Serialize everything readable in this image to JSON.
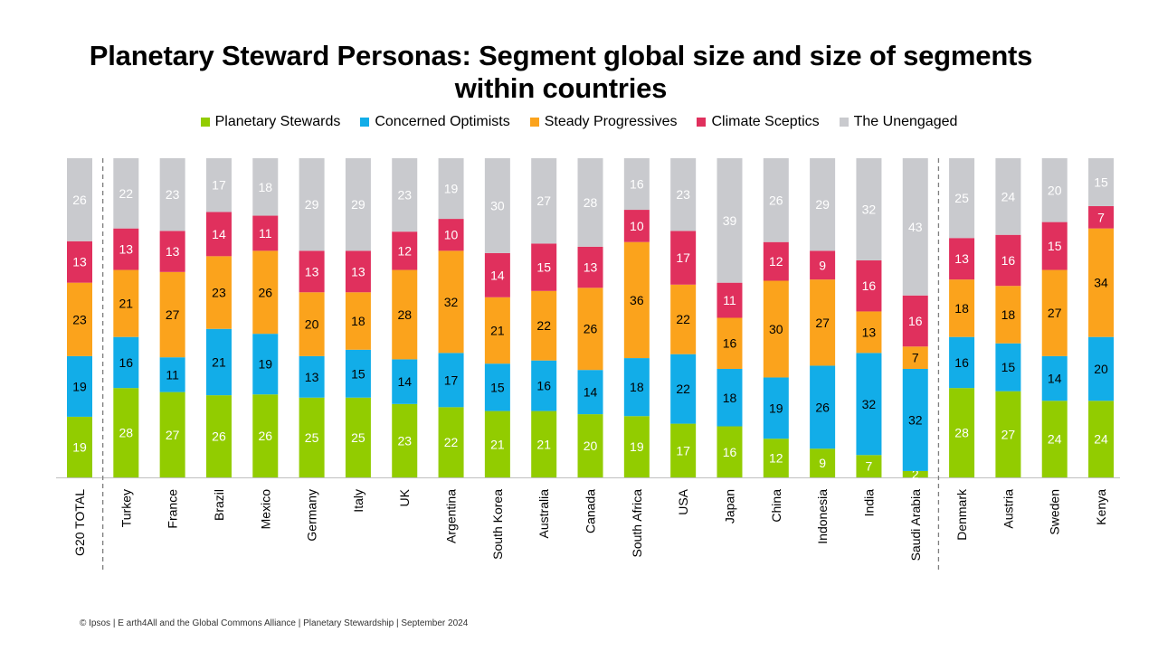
{
  "title_line1": "Planetary Steward Personas: Segment global size and size of segments",
  "title_line2": "within countries",
  "footer": "© Ipsos | E arth4All and the Global Commons Alliance | Planetary Stewardship | September 2024",
  "legend": [
    {
      "label": "Planetary Stewards",
      "color": "#92cc00"
    },
    {
      "label": "Concerned Optimists",
      "color": "#12ade8"
    },
    {
      "label": "Steady Progressives",
      "color": "#fba31c"
    },
    {
      "label": "Climate Sceptics",
      "color": "#e0305d"
    },
    {
      "label": "The Unengaged",
      "color": "#c9cace"
    }
  ],
  "chart_data": {
    "type": "bar",
    "stacked": true,
    "percent_stacked": true,
    "categories": [
      "G20 TOTAL",
      "Turkey",
      "France",
      "Brazil",
      "Mexico",
      "Germany",
      "Italy",
      "UK",
      "Argentina",
      "South Korea",
      "Australia",
      "Canada",
      "South Africa",
      "USA",
      "Japan",
      "China",
      "Indonesia",
      "India",
      "Saudi Arabia",
      "Denmark",
      "Austria",
      "Sweden",
      "Kenya"
    ],
    "series": [
      {
        "name": "Planetary Stewards",
        "color": "#92cc00",
        "label_color": "#ffffff",
        "values": [
          19,
          28,
          27,
          26,
          26,
          25,
          25,
          23,
          22,
          21,
          21,
          20,
          19,
          17,
          16,
          12,
          9,
          7,
          2,
          28,
          27,
          24,
          24
        ]
      },
      {
        "name": "Concerned Optimists",
        "color": "#12ade8",
        "label_color": "#000000",
        "values": [
          19,
          16,
          11,
          21,
          19,
          13,
          15,
          14,
          17,
          15,
          16,
          14,
          18,
          22,
          18,
          19,
          26,
          32,
          32,
          16,
          15,
          14,
          20
        ]
      },
      {
        "name": "Steady Progressives",
        "color": "#fba31c",
        "label_color": "#000000",
        "values": [
          23,
          21,
          27,
          23,
          26,
          20,
          18,
          28,
          32,
          21,
          22,
          26,
          36,
          22,
          16,
          30,
          27,
          13,
          7,
          18,
          18,
          27,
          34
        ]
      },
      {
        "name": "Climate Sceptics",
        "color": "#e0305d",
        "label_color": "#ffffff",
        "values": [
          13,
          13,
          13,
          14,
          11,
          13,
          13,
          12,
          10,
          14,
          15,
          13,
          10,
          17,
          11,
          12,
          9,
          16,
          16,
          13,
          16,
          15,
          7
        ]
      },
      {
        "name": "The Unengaged",
        "color": "#c9cace",
        "label_color": "#ffffff",
        "values": [
          26,
          22,
          23,
          17,
          18,
          29,
          29,
          23,
          19,
          30,
          27,
          28,
          16,
          23,
          39,
          26,
          29,
          32,
          43,
          25,
          24,
          20,
          15
        ]
      }
    ],
    "group_separators_after": [
      "G20 TOTAL",
      "Saudi Arabia"
    ],
    "grid": false,
    "legend_position": "top"
  }
}
